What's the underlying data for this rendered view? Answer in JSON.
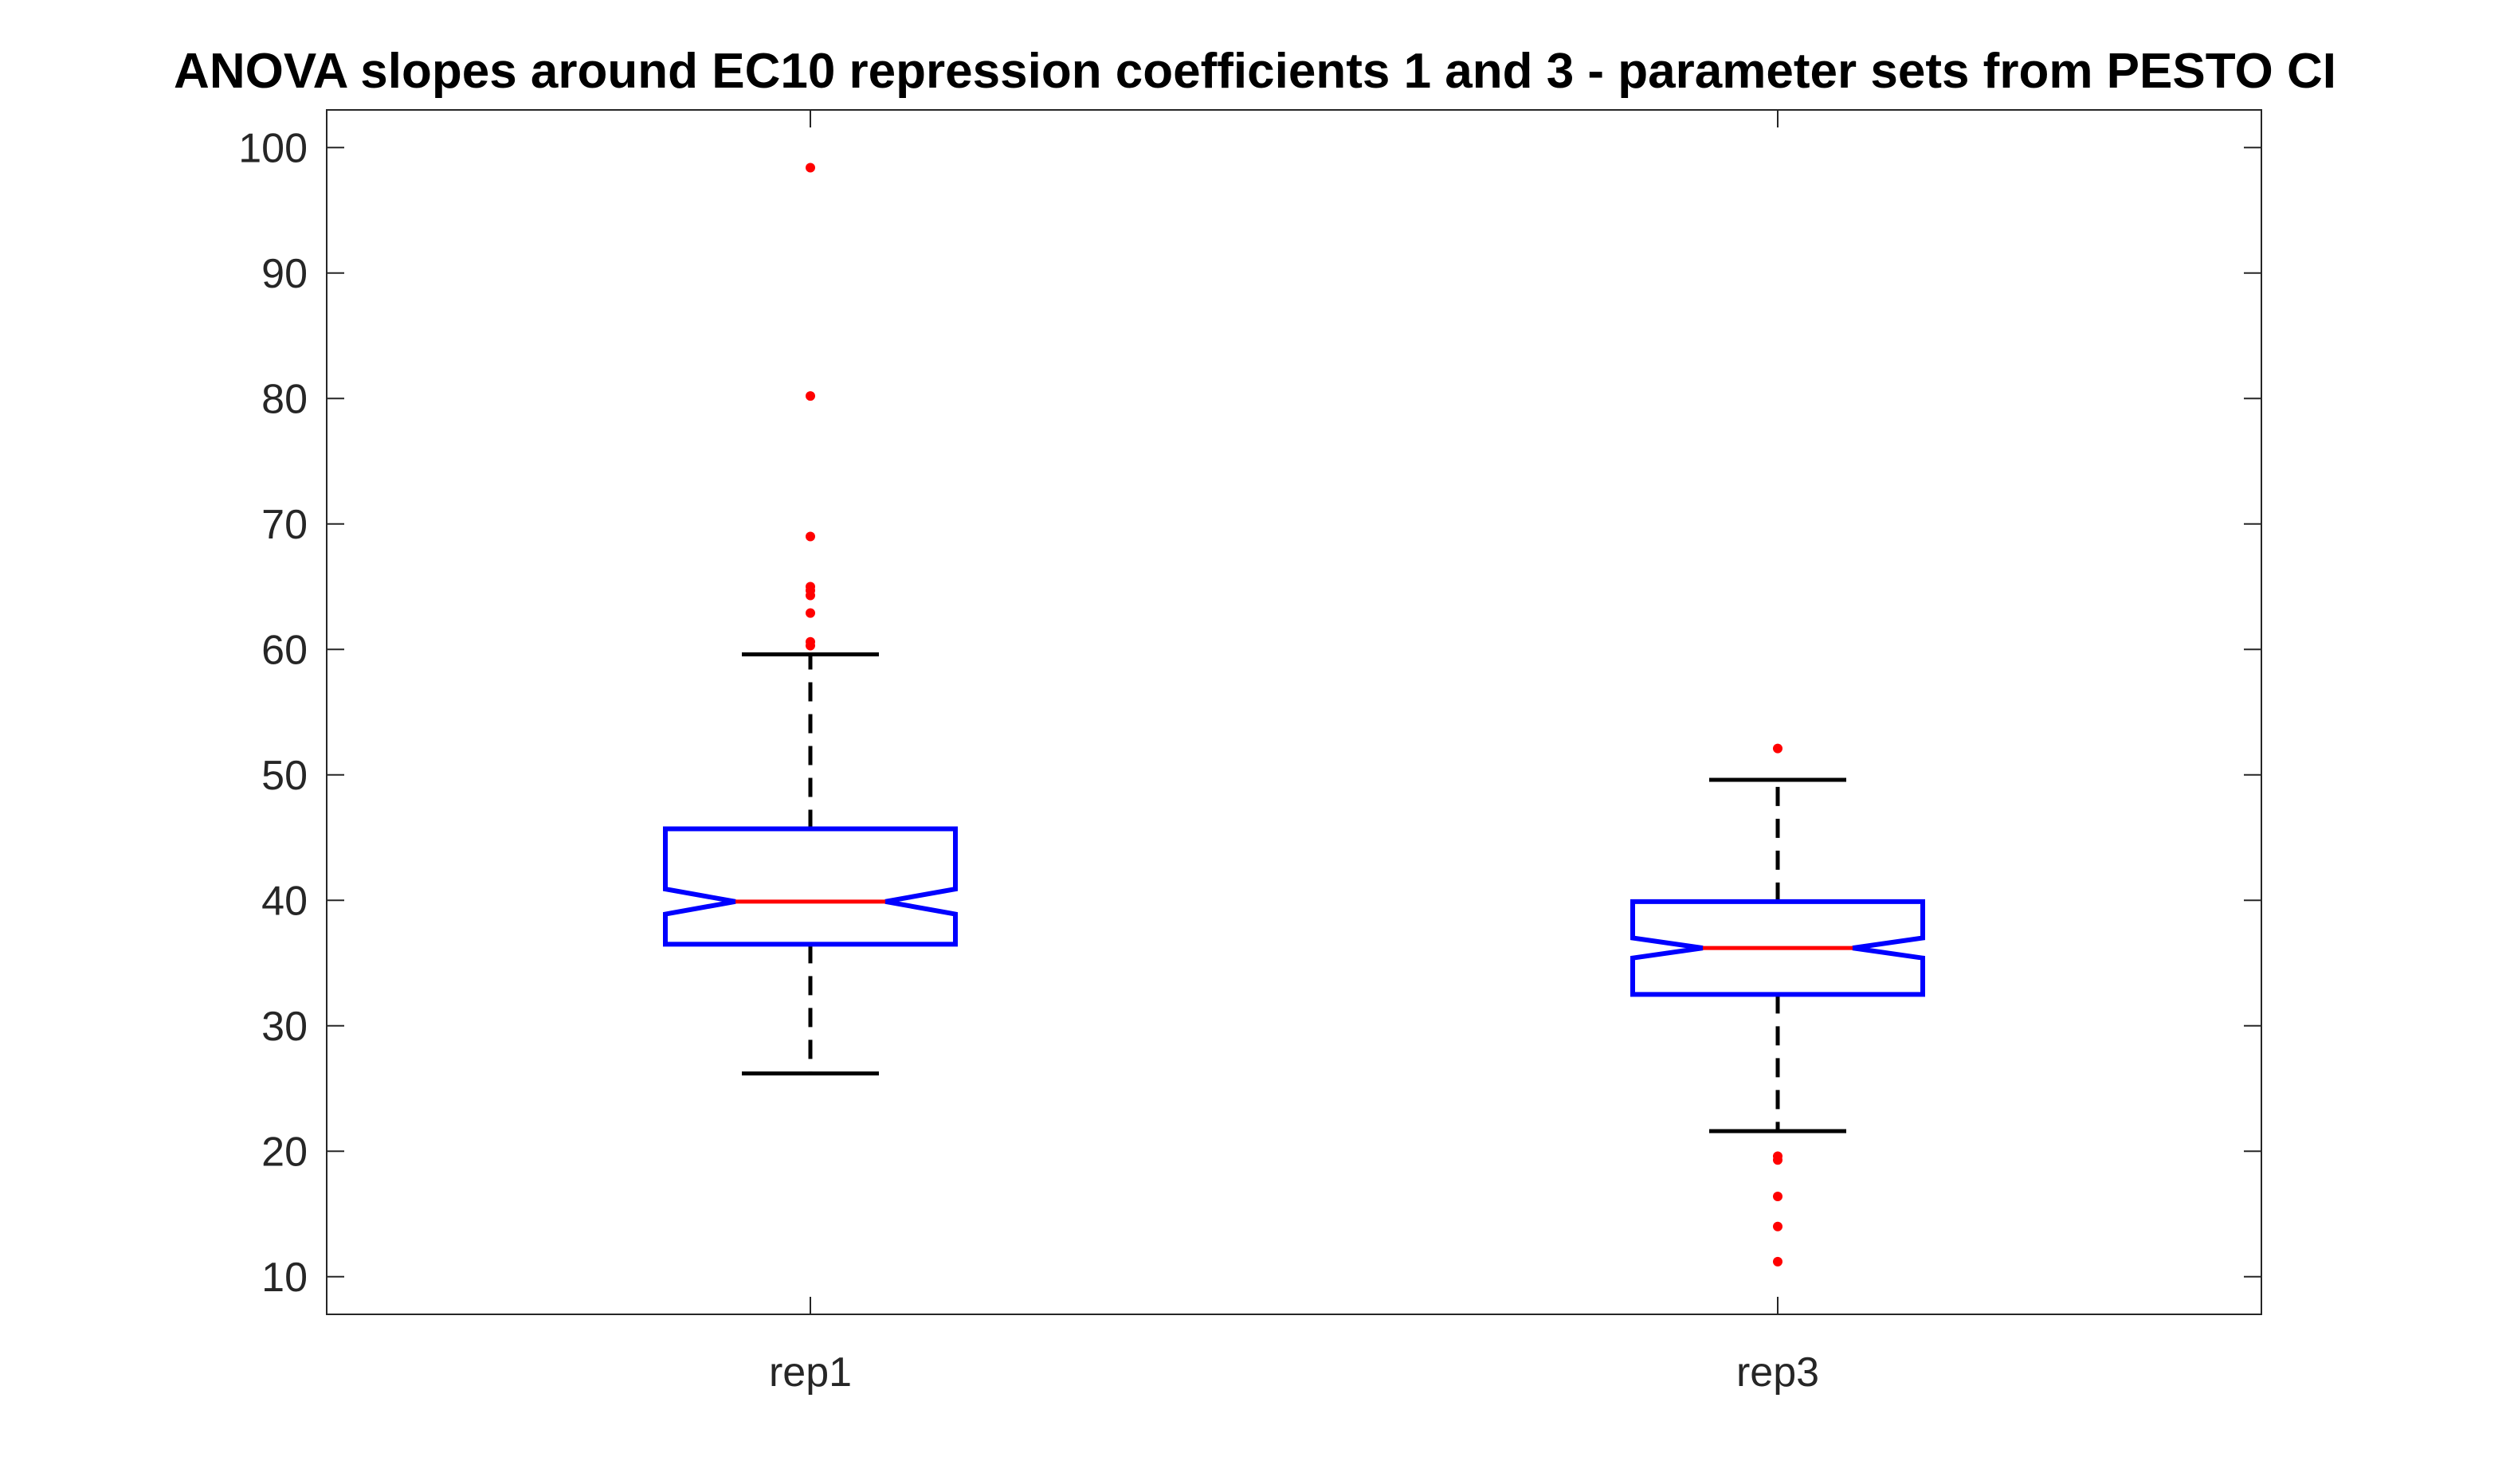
{
  "chart_data": {
    "type": "box",
    "title": "ANOVA slopes around EC10 repression coefficients 1 and 3 - parameter sets from PESTO CI",
    "xlabel": "",
    "ylabel": "",
    "categories": [
      "rep1",
      "rep3"
    ],
    "ylim": [
      7,
      103
    ],
    "yticks": [
      10,
      20,
      30,
      40,
      50,
      60,
      70,
      80,
      90,
      100
    ],
    "grid": false,
    "notched": true,
    "boxes": [
      {
        "name": "rep1",
        "whisker_low": 26.2,
        "q1": 36.5,
        "median": 39.9,
        "q3": 45.7,
        "whisker_high": 59.6,
        "notch_low": 38.9,
        "notch_high": 40.9,
        "outliers": [
          60.3,
          60.6,
          62.9,
          64.3,
          64.7,
          65.0,
          69.0,
          80.2,
          98.4
        ]
      },
      {
        "name": "rep3",
        "whisker_low": 21.6,
        "q1": 32.5,
        "median": 36.2,
        "q3": 39.9,
        "whisker_high": 49.6,
        "notch_low": 35.4,
        "notch_high": 37.0,
        "outliers": [
          52.1,
          19.3,
          19.6,
          16.4,
          14.0,
          11.2
        ]
      }
    ],
    "colors": {
      "box": "#0000ff",
      "median": "#ff0000",
      "whisker": "#000000",
      "outlier": "#ff0000",
      "axes": "#262626"
    }
  }
}
